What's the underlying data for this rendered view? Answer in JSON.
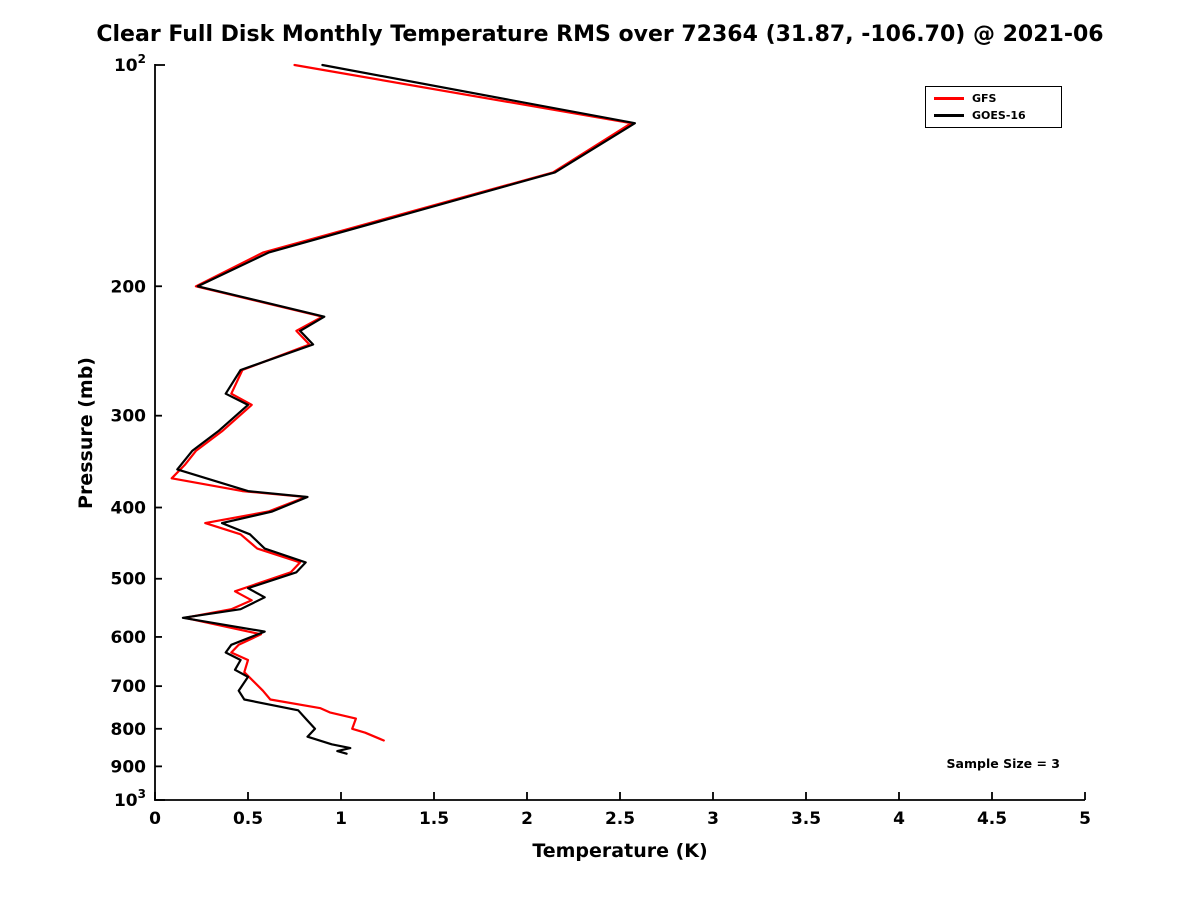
{
  "chart_data": {
    "type": "line",
    "title": "Clear Full Disk Monthly Temperature RMS over 72364 (31.87, -106.70) @ 2021-06",
    "xlabel": "Temperature (K)",
    "ylabel": "Pressure (mb)",
    "xlim": [
      0,
      5
    ],
    "plim": [
      100,
      1000
    ],
    "y_scale": "log",
    "y_inverted": true,
    "grid": false,
    "x_ticks": [
      0,
      0.5,
      1,
      1.5,
      2,
      2.5,
      3,
      3.5,
      4,
      4.5,
      5
    ],
    "x_tick_labels": [
      "0",
      "0.5",
      "1",
      "1.5",
      "2",
      "2.5",
      "3",
      "3.5",
      "4",
      "4.5",
      "5"
    ],
    "y_ticks": [
      {
        "p": 100,
        "label": "10",
        "exp": "2"
      },
      {
        "p": 200,
        "label": "200"
      },
      {
        "p": 300,
        "label": "300"
      },
      {
        "p": 400,
        "label": "400"
      },
      {
        "p": 500,
        "label": "500"
      },
      {
        "p": 600,
        "label": "600"
      },
      {
        "p": 700,
        "label": "700"
      },
      {
        "p": 800,
        "label": "800"
      },
      {
        "p": 900,
        "label": "900"
      },
      {
        "p": 1000,
        "label": "10",
        "exp": "3"
      }
    ],
    "legend": {
      "position": "top-right",
      "entries": [
        {
          "name": "GFS",
          "color": "#ff0000"
        },
        {
          "name": "GOES-16",
          "color": "#000000"
        }
      ]
    },
    "annotation": "Sample Size = 3",
    "series": [
      {
        "name": "GFS",
        "color": "#ff0000",
        "points_format": "[temperature_K, pressure_mb]",
        "points": [
          [
            0.75,
            100
          ],
          [
            2.56,
            120
          ],
          [
            2.14,
            140
          ],
          [
            0.58,
            180
          ],
          [
            0.22,
            200
          ],
          [
            0.9,
            220
          ],
          [
            0.76,
            230
          ],
          [
            0.83,
            240
          ],
          [
            0.47,
            260
          ],
          [
            0.41,
            280
          ],
          [
            0.52,
            290
          ],
          [
            0.36,
            315
          ],
          [
            0.22,
            335
          ],
          [
            0.16,
            350
          ],
          [
            0.09,
            365
          ],
          [
            0.47,
            380
          ],
          [
            0.81,
            387
          ],
          [
            0.61,
            405
          ],
          [
            0.27,
            420
          ],
          [
            0.46,
            435
          ],
          [
            0.55,
            455
          ],
          [
            0.78,
            475
          ],
          [
            0.73,
            490
          ],
          [
            0.43,
            520
          ],
          [
            0.52,
            535
          ],
          [
            0.41,
            550
          ],
          [
            0.16,
            565
          ],
          [
            0.57,
            595
          ],
          [
            0.45,
            615
          ],
          [
            0.41,
            630
          ],
          [
            0.5,
            645
          ],
          [
            0.48,
            670
          ],
          [
            0.58,
            710
          ],
          [
            0.62,
            730
          ],
          [
            0.89,
            750
          ],
          [
            0.94,
            760
          ],
          [
            1.08,
            775
          ],
          [
            1.06,
            800
          ],
          [
            1.13,
            810
          ],
          [
            1.23,
            830
          ]
        ]
      },
      {
        "name": "GOES-16",
        "color": "#000000",
        "points_format": "[temperature_K, pressure_mb]",
        "points": [
          [
            0.9,
            100
          ],
          [
            2.58,
            120
          ],
          [
            2.15,
            140
          ],
          [
            0.61,
            180
          ],
          [
            0.23,
            200
          ],
          [
            0.91,
            220
          ],
          [
            0.78,
            230
          ],
          [
            0.85,
            240
          ],
          [
            0.46,
            260
          ],
          [
            0.38,
            280
          ],
          [
            0.5,
            290
          ],
          [
            0.34,
            315
          ],
          [
            0.2,
            335
          ],
          [
            0.12,
            355
          ],
          [
            0.5,
            380
          ],
          [
            0.82,
            387
          ],
          [
            0.63,
            405
          ],
          [
            0.36,
            420
          ],
          [
            0.51,
            435
          ],
          [
            0.59,
            455
          ],
          [
            0.81,
            475
          ],
          [
            0.76,
            490
          ],
          [
            0.5,
            515
          ],
          [
            0.59,
            530
          ],
          [
            0.46,
            550
          ],
          [
            0.15,
            565
          ],
          [
            0.59,
            590
          ],
          [
            0.41,
            615
          ],
          [
            0.38,
            630
          ],
          [
            0.46,
            645
          ],
          [
            0.43,
            665
          ],
          [
            0.5,
            680
          ],
          [
            0.45,
            710
          ],
          [
            0.48,
            730
          ],
          [
            0.77,
            755
          ],
          [
            0.81,
            775
          ],
          [
            0.86,
            800
          ],
          [
            0.82,
            820
          ],
          [
            0.95,
            840
          ],
          [
            1.05,
            850
          ],
          [
            0.98,
            858
          ],
          [
            1.03,
            865
          ]
        ]
      }
    ]
  }
}
